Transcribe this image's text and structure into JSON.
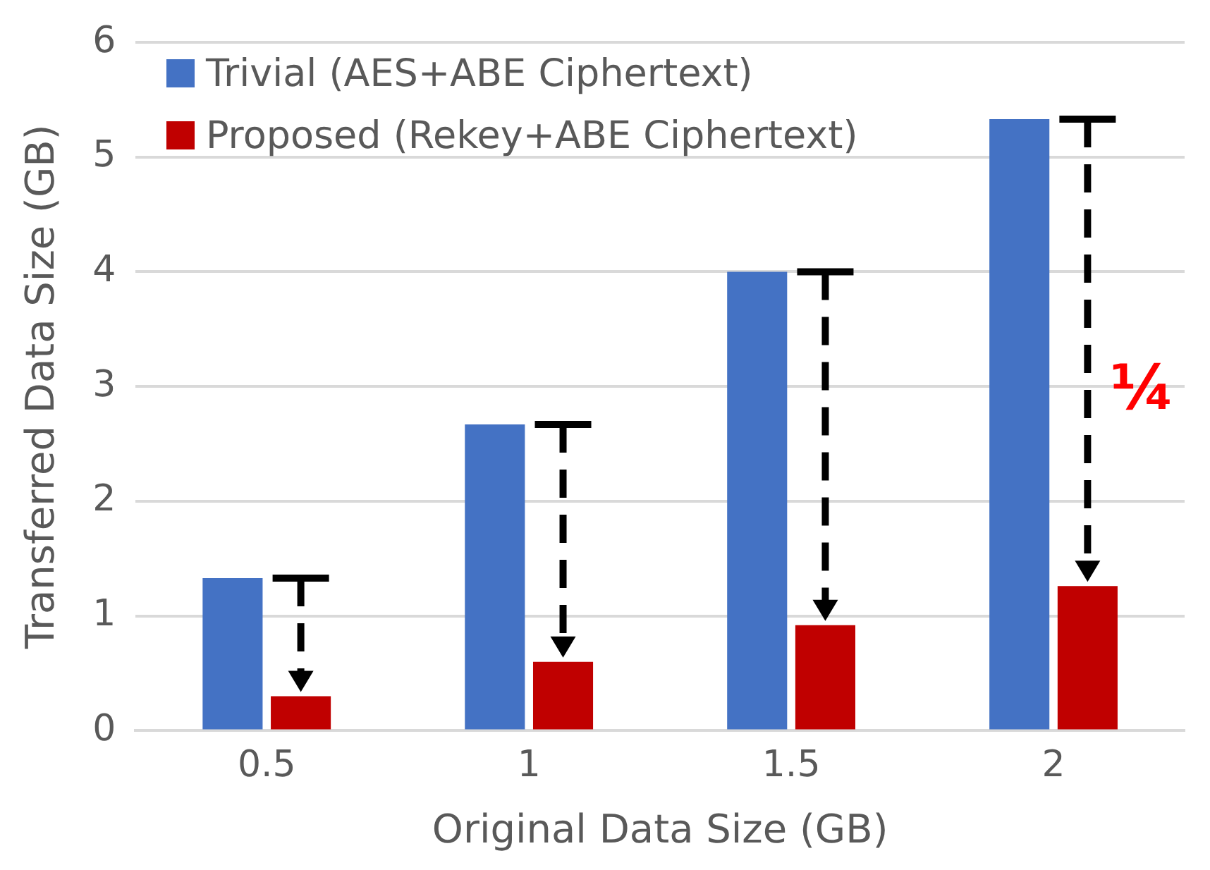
{
  "chart_data": {
    "type": "bar",
    "xlabel": "Original Data Size (GB)",
    "ylabel": "Transferred Data Size (GB)",
    "categories": [
      "0.5",
      "1",
      "1.5",
      "2"
    ],
    "series": [
      {
        "name": "Trivial (AES+ABE Ciphertext)",
        "color": "#4472c4",
        "values": [
          1.33,
          2.67,
          4.0,
          5.33
        ]
      },
      {
        "name": "Proposed (Rekey+ABE Ciphertext)",
        "color": "#c00000",
        "values": [
          0.3,
          0.6,
          0.92,
          1.26
        ]
      }
    ],
    "ylim": [
      0,
      6
    ],
    "yticks": [
      0,
      1,
      2,
      3,
      4,
      5,
      6
    ],
    "grid": "y",
    "legend": "top left",
    "annotations": [
      "¼"
    ]
  }
}
